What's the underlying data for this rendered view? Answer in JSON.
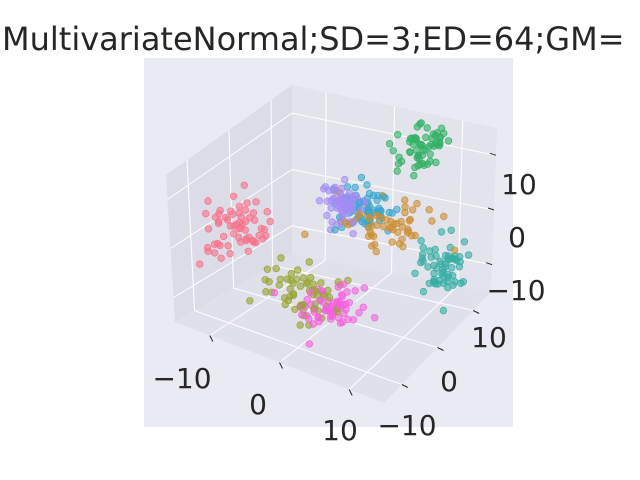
{
  "chart_data": {
    "type": "scatter",
    "projection": "3d",
    "title": "MultivariateNormal;SD=3;ED=64;GM=",
    "xlabel": "",
    "ylabel": "",
    "zlabel": "",
    "x_ticks": [
      "−10",
      "0",
      "10"
    ],
    "y_ticks": [
      "−10",
      "0",
      "10"
    ],
    "z_ticks": [
      "−10",
      "0",
      "10"
    ],
    "xlim": [
      -15,
      15
    ],
    "ylim": [
      -15,
      15
    ],
    "zlim": [
      -15,
      15
    ],
    "grid": true,
    "legend": "none",
    "series": [
      {
        "color": "#f77189",
        "center": [
          -11,
          -6,
          1
        ],
        "spread": [
          2.0,
          3.0,
          2.5
        ]
      },
      {
        "color": "#97a431",
        "center": [
          -2,
          -5,
          -8
        ],
        "spread": [
          3.0,
          2.5,
          2.0
        ]
      },
      {
        "color": "#f561dd",
        "center": [
          3,
          -6,
          -9
        ],
        "spread": [
          2.0,
          2.0,
          1.5
        ]
      },
      {
        "color": "#36ada4",
        "center": [
          12,
          7,
          -6
        ],
        "spread": [
          1.5,
          2.0,
          2.5
        ]
      },
      {
        "color": "#cc9035",
        "center": [
          3,
          6,
          0
        ],
        "spread": [
          3.5,
          2.0,
          2.0
        ]
      },
      {
        "color": "#39a7d0",
        "center": [
          0,
          8,
          1
        ],
        "spread": [
          2.0,
          1.5,
          1.5
        ]
      },
      {
        "color": "#a48cf4",
        "center": [
          -2,
          5,
          2
        ],
        "spread": [
          1.5,
          1.2,
          2.0
        ]
      },
      {
        "color": "#32b166",
        "center": [
          5,
          14,
          10
        ],
        "spread": [
          1.5,
          2.0,
          2.0
        ]
      }
    ]
  },
  "colors": {
    "pane_back": "#e3e3ec",
    "pane_left": "#dcdce6",
    "pane_floor": "#e0e0ea",
    "axes_bg": "#eaeaf2",
    "grid": "#ffffff",
    "text": "#262626"
  }
}
